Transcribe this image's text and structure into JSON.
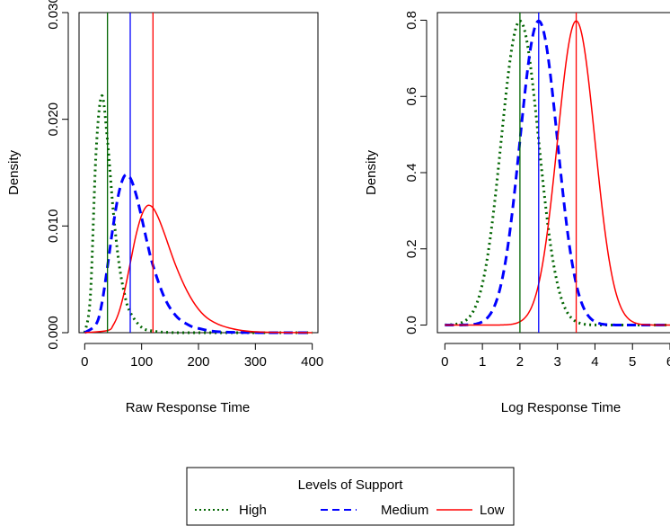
{
  "chart_data": [
    {
      "type": "line",
      "xlabel": "Raw Response Time",
      "ylabel": "Density",
      "xlim": [
        -10,
        410
      ],
      "ylim": [
        0,
        0.03
      ],
      "xticks": [
        0,
        100,
        200,
        300,
        400
      ],
      "yticks": [
        0.0,
        0.01,
        0.02,
        0.03
      ],
      "ytick_labels": [
        "0.000",
        "0.010",
        "0.020",
        "0.030"
      ],
      "xtick_labels": [
        "0",
        "100",
        "200",
        "300",
        "400"
      ],
      "vlines": [
        {
          "series": "High",
          "x": 40
        },
        {
          "series": "Medium",
          "x": 80
        },
        {
          "series": "Low",
          "x": 120
        }
      ],
      "series": [
        {
          "name": "High",
          "color": "#006400",
          "style": "dotted",
          "x": [
            0,
            10,
            20,
            30,
            40,
            50,
            60,
            70,
            80,
            100,
            120,
            150,
            200,
            400
          ],
          "y": [
            0.0,
            0.0035,
            0.017,
            0.0222,
            0.018,
            0.0115,
            0.0066,
            0.0036,
            0.0019,
            0.0005,
            0.00015,
            2e-05,
            0.0,
            0.0
          ]
        },
        {
          "name": "Medium",
          "color": "#0000ff",
          "style": "dashed",
          "x": [
            0,
            20,
            30,
            40,
            50,
            60,
            70,
            80,
            90,
            100,
            110,
            120,
            140,
            160,
            180,
            200,
            250,
            400
          ],
          "y": [
            0.0,
            0.0008,
            0.0027,
            0.0062,
            0.01,
            0.0131,
            0.0147,
            0.0145,
            0.013,
            0.0108,
            0.0084,
            0.0063,
            0.0033,
            0.0016,
            0.0008,
            0.0004,
            5e-05,
            0.0
          ]
        },
        {
          "name": "Low",
          "color": "#ff0000",
          "style": "solid",
          "x": [
            0,
            40,
            50,
            60,
            70,
            80,
            90,
            100,
            110,
            120,
            130,
            140,
            160,
            180,
            200,
            220,
            250,
            300,
            400
          ],
          "y": [
            0.0,
            0.0002,
            0.0007,
            0.0019,
            0.0039,
            0.0065,
            0.0091,
            0.011,
            0.0119,
            0.0117,
            0.0107,
            0.0093,
            0.0063,
            0.0039,
            0.0022,
            0.0012,
            0.0005,
            8e-05,
            0.0
          ]
        }
      ]
    },
    {
      "type": "line",
      "xlabel": "Log Response Time",
      "ylabel": "Density",
      "xlim": [
        -0.2,
        6
      ],
      "ylim": [
        -0.02,
        0.82
      ],
      "xticks": [
        0,
        1,
        2,
        3,
        4,
        5,
        6
      ],
      "yticks": [
        0.0,
        0.2,
        0.4,
        0.6,
        0.8
      ],
      "ytick_labels": [
        "0.0",
        "0.2",
        "0.4",
        "0.6",
        "0.8"
      ],
      "xtick_labels": [
        "0",
        "1",
        "2",
        "3",
        "4",
        "5",
        "6"
      ],
      "vlines": [
        {
          "series": "High",
          "x": 2.0
        },
        {
          "series": "Medium",
          "x": 2.5
        },
        {
          "series": "Low",
          "x": 3.5
        }
      ],
      "series": [
        {
          "name": "High",
          "color": "#006400",
          "style": "dotted",
          "mean": 2.0,
          "sd": 0.5,
          "peak": 0.798
        },
        {
          "name": "Medium",
          "color": "#0000ff",
          "style": "dashed",
          "mean": 2.5,
          "sd": 0.5,
          "peak": 0.798
        },
        {
          "name": "Low",
          "color": "#ff0000",
          "style": "solid",
          "mean": 3.5,
          "sd": 0.5,
          "peak": 0.798
        }
      ]
    }
  ],
  "legend": {
    "title": "Levels of Support",
    "entries": [
      {
        "label": "High",
        "color": "#006400",
        "style": "dotted"
      },
      {
        "label": "Medium",
        "color": "#0000ff",
        "style": "dashed"
      },
      {
        "label": "Low",
        "color": "#ff0000",
        "style": "solid"
      }
    ]
  }
}
